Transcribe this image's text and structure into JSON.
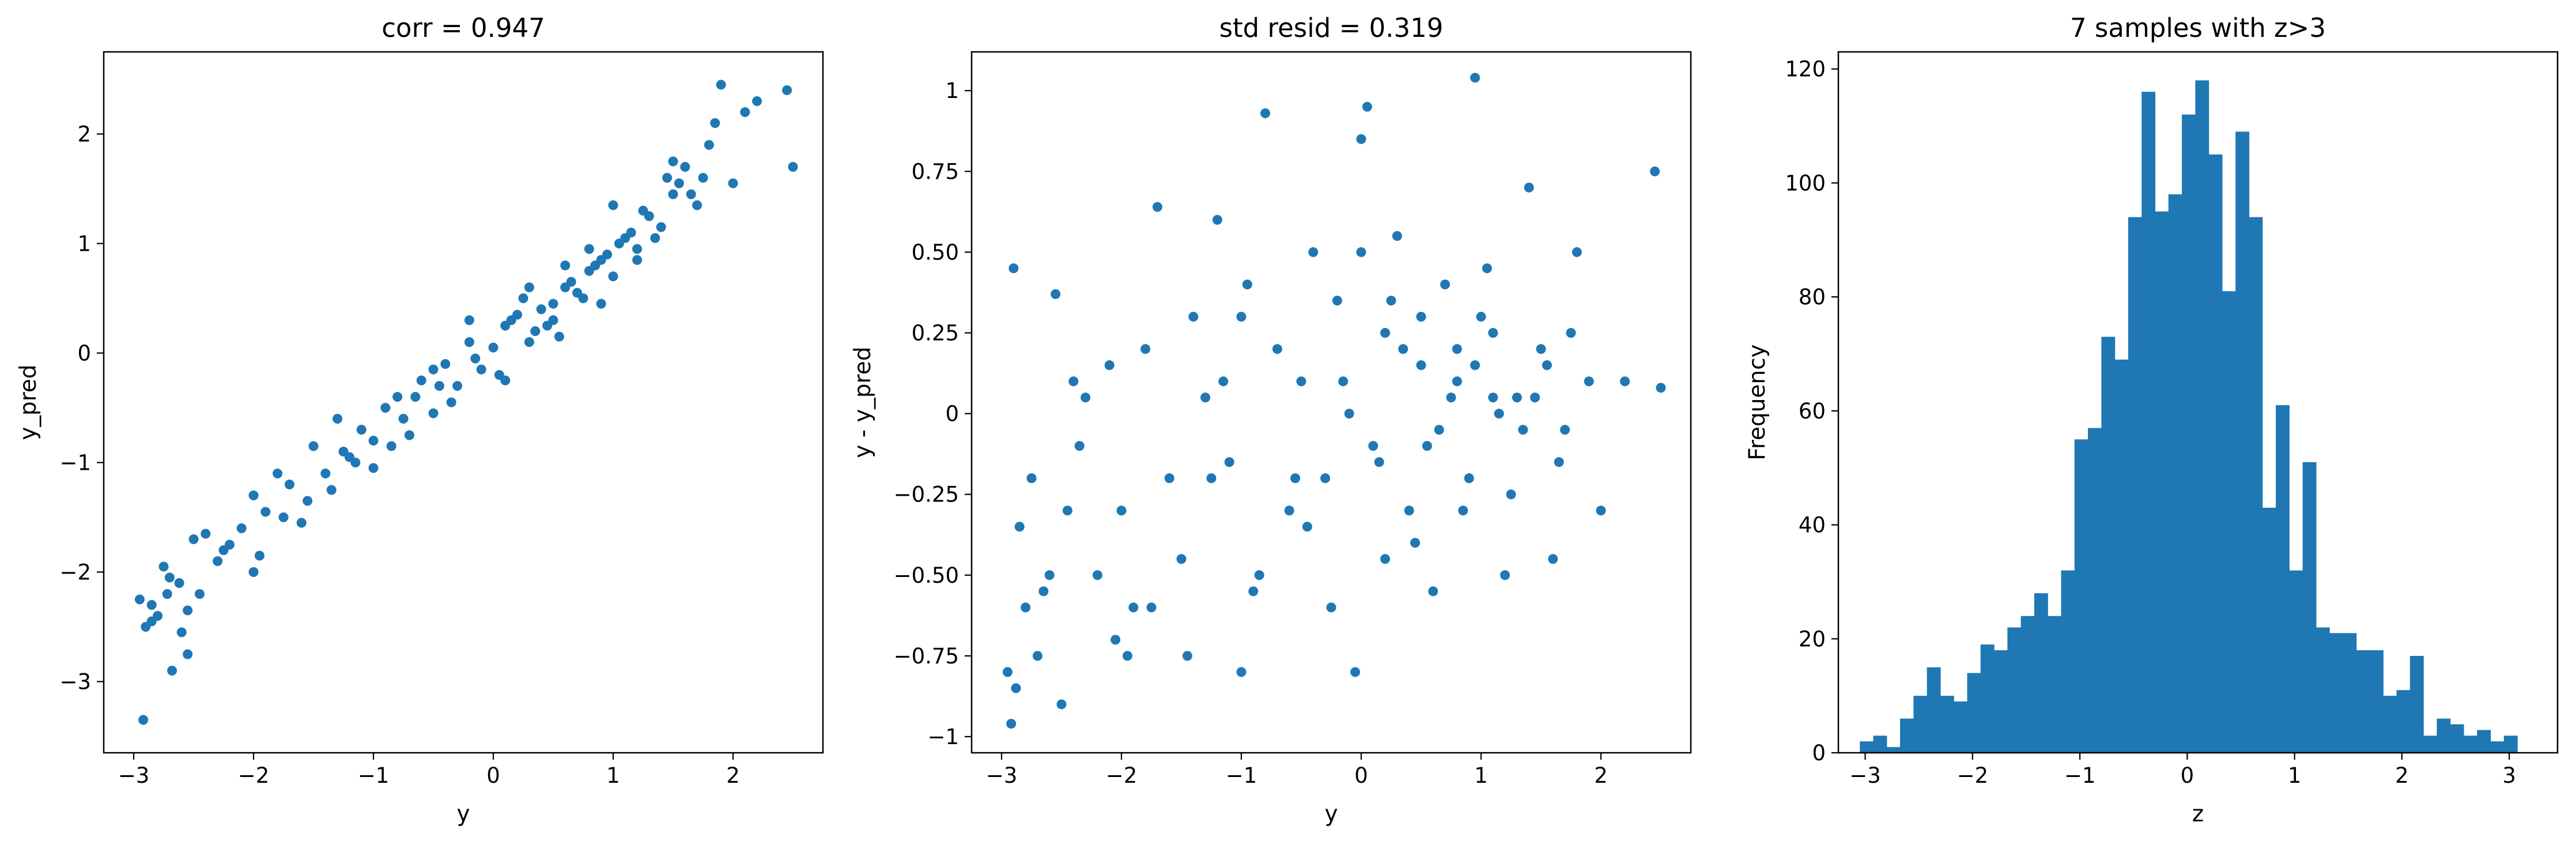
{
  "colors": {
    "series": "#1f77b4",
    "axes": "#000000",
    "background": "#ffffff"
  },
  "chart_data": [
    {
      "type": "scatter",
      "title": "corr = 0.947",
      "xlabel": "y",
      "ylabel": "y_pred",
      "xlim": [
        -3.25,
        2.75
      ],
      "ylim": [
        -3.65,
        2.75
      ],
      "xticks": [
        -3,
        -2,
        -1,
        0,
        1,
        2
      ],
      "yticks": [
        -3,
        -2,
        -1,
        0,
        1,
        2
      ],
      "x": [
        -2.95,
        -2.92,
        -2.9,
        -2.85,
        -2.8,
        -2.75,
        -2.72,
        -2.68,
        -2.62,
        -2.55,
        -2.5,
        -2.45,
        -2.4,
        -2.3,
        -2.2,
        -2.1,
        -2.0,
        -1.9,
        -1.8,
        -1.7,
        -1.6,
        -1.5,
        -1.4,
        -1.3,
        -1.2,
        -1.1,
        -1.0,
        -0.9,
        -0.8,
        -0.7,
        -0.6,
        -0.5,
        -0.4,
        -0.3,
        -0.2,
        -0.1,
        0.0,
        0.1,
        0.2,
        0.3,
        0.4,
        0.5,
        0.6,
        0.7,
        0.8,
        0.9,
        1.0,
        1.1,
        1.2,
        1.3,
        1.4,
        1.5,
        1.6,
        1.7,
        1.8,
        1.9,
        2.1,
        2.2,
        2.5,
        2.45,
        -2.85,
        -2.55,
        -1.95,
        -1.55,
        -1.15,
        -0.75,
        -0.35,
        0.05,
        0.35,
        0.55,
        0.75,
        0.95,
        1.15,
        1.35,
        1.55,
        -2.7,
        -2.25,
        -1.75,
        -1.25,
        -0.85,
        -0.45,
        -0.15,
        0.15,
        0.45,
        0.65,
        0.85,
        1.05,
        1.25,
        1.45,
        1.65,
        -2.0,
        -1.35,
        -0.65,
        0.25,
        0.5,
        0.8,
        1.0,
        1.2,
        1.5,
        1.75,
        0.1,
        0.3,
        0.6,
        0.9,
        -0.2,
        -0.5,
        -1.0,
        1.85,
        2.0,
        -2.6
      ],
      "y": [
        -2.25,
        -3.35,
        -2.5,
        -2.3,
        -2.4,
        -1.95,
        -2.2,
        -2.9,
        -2.1,
        -2.75,
        -1.7,
        -2.2,
        -1.65,
        -1.9,
        -1.75,
        -1.6,
        -1.3,
        -1.45,
        -1.1,
        -1.2,
        -1.55,
        -0.85,
        -1.1,
        -0.6,
        -0.95,
        -0.7,
        -1.05,
        -0.5,
        -0.4,
        -0.75,
        -0.25,
        -0.55,
        -0.1,
        -0.3,
        0.1,
        -0.15,
        0.05,
        0.25,
        0.35,
        0.1,
        0.4,
        0.45,
        0.6,
        0.55,
        0.75,
        0.85,
        0.7,
        1.05,
        0.95,
        1.25,
        1.15,
        1.45,
        1.7,
        1.35,
        1.9,
        2.45,
        2.2,
        2.3,
        1.7,
        2.4,
        -2.45,
        -2.35,
        -1.85,
        -1.35,
        -1.0,
        -0.6,
        -0.45,
        -0.2,
        0.2,
        0.15,
        0.5,
        0.9,
        1.1,
        1.05,
        1.55,
        -2.05,
        -1.8,
        -1.5,
        -0.9,
        -0.85,
        -0.3,
        -0.05,
        0.3,
        0.25,
        0.65,
        0.8,
        1.0,
        1.3,
        1.6,
        1.45,
        -2.0,
        -1.25,
        -0.4,
        0.5,
        0.3,
        0.95,
        1.35,
        0.85,
        1.75,
        1.6,
        -0.25,
        0.6,
        0.8,
        0.45,
        0.3,
        -0.15,
        -0.8,
        2.1,
        1.55,
        -2.55
      ]
    },
    {
      "type": "scatter",
      "title": "std resid = 0.319",
      "xlabel": "y",
      "ylabel": "y - y_pred",
      "xlim": [
        -3.25,
        2.75
      ],
      "ylim": [
        -1.05,
        1.12
      ],
      "xticks": [
        -3,
        -2,
        -1,
        0,
        1,
        2
      ],
      "yticks": [
        -1.0,
        -0.75,
        -0.5,
        -0.25,
        0.0,
        0.25,
        0.5,
        0.75,
        1.0
      ],
      "x": [
        -2.95,
        -2.92,
        -2.9,
        -2.85,
        -2.8,
        -2.75,
        -2.7,
        -2.6,
        -2.55,
        -2.5,
        -2.45,
        -2.35,
        -2.3,
        -2.2,
        -2.1,
        -2.0,
        -1.9,
        -1.8,
        -1.7,
        -1.6,
        -1.5,
        -1.4,
        -1.3,
        -1.2,
        -1.1,
        -1.0,
        -0.9,
        -0.8,
        -0.7,
        -0.6,
        -0.5,
        -0.4,
        -0.3,
        -0.2,
        -0.1,
        0.0,
        0.1,
        0.2,
        0.3,
        0.4,
        0.5,
        0.6,
        0.7,
        0.8,
        0.9,
        1.0,
        1.1,
        1.2,
        1.3,
        1.4,
        1.5,
        1.6,
        1.7,
        1.8,
        1.9,
        2.0,
        2.2,
        2.45,
        2.5,
        -2.88,
        -2.65,
        -2.4,
        -2.05,
        -1.75,
        -1.45,
        -1.15,
        -0.85,
        -0.55,
        -0.25,
        0.05,
        0.25,
        0.45,
        0.65,
        0.85,
        1.05,
        1.25,
        1.45,
        1.65,
        -1.95,
        -1.25,
        -0.95,
        -0.45,
        -0.15,
        0.15,
        0.35,
        0.55,
        0.75,
        0.95,
        1.15,
        1.35,
        1.55,
        1.75,
        -0.05,
        0.2,
        0.5,
        0.8,
        1.1,
        -1.0,
        0.0,
        0.95
      ],
      "y": [
        -0.8,
        -0.96,
        0.45,
        -0.35,
        -0.6,
        -0.2,
        -0.75,
        -0.5,
        0.37,
        -0.9,
        -0.3,
        -0.1,
        0.05,
        -0.5,
        0.15,
        -0.3,
        -0.6,
        0.2,
        0.64,
        -0.2,
        -0.45,
        0.3,
        0.05,
        0.6,
        -0.15,
        0.3,
        -0.55,
        0.93,
        0.2,
        -0.3,
        0.1,
        0.5,
        -0.2,
        0.35,
        0.0,
        0.85,
        -0.1,
        0.25,
        0.55,
        -0.3,
        0.15,
        -0.55,
        0.4,
        0.1,
        -0.2,
        0.3,
        0.25,
        -0.5,
        0.05,
        0.7,
        0.2,
        -0.45,
        -0.05,
        0.5,
        0.1,
        -0.3,
        0.1,
        0.75,
        0.08,
        -0.85,
        -0.55,
        0.1,
        -0.7,
        -0.6,
        -0.75,
        0.1,
        -0.5,
        -0.2,
        -0.6,
        0.95,
        0.35,
        -0.4,
        -0.05,
        -0.3,
        0.45,
        -0.25,
        0.05,
        -0.15,
        -0.75,
        -0.2,
        0.4,
        -0.35,
        0.1,
        -0.15,
        0.2,
        -0.1,
        0.05,
        0.15,
        0.0,
        -0.05,
        0.15,
        0.25,
        -0.8,
        -0.45,
        0.3,
        0.2,
        0.05,
        -0.8,
        0.5,
        1.04
      ]
    },
    {
      "type": "bar",
      "title": "7 samples with z>3",
      "xlabel": "z",
      "ylabel": "Frequency",
      "xlim": [
        -3.25,
        3.45
      ],
      "ylim": [
        0,
        123
      ],
      "xticks": [
        -3,
        -2,
        -1,
        0,
        1,
        2,
        3
      ],
      "yticks": [
        0,
        20,
        40,
        60,
        80,
        100,
        120
      ],
      "bin_start": -3.05,
      "bin_width": 0.125,
      "values": [
        2,
        3,
        1,
        6,
        10,
        15,
        10,
        9,
        14,
        19,
        18,
        22,
        24,
        28,
        24,
        32,
        55,
        57,
        73,
        69,
        94,
        116,
        95,
        98,
        112,
        118,
        105,
        81,
        109,
        94,
        43,
        61,
        32,
        51,
        22,
        21,
        21,
        18,
        18,
        10,
        11,
        17,
        3,
        6,
        5,
        3,
        4,
        2,
        3
      ]
    }
  ]
}
